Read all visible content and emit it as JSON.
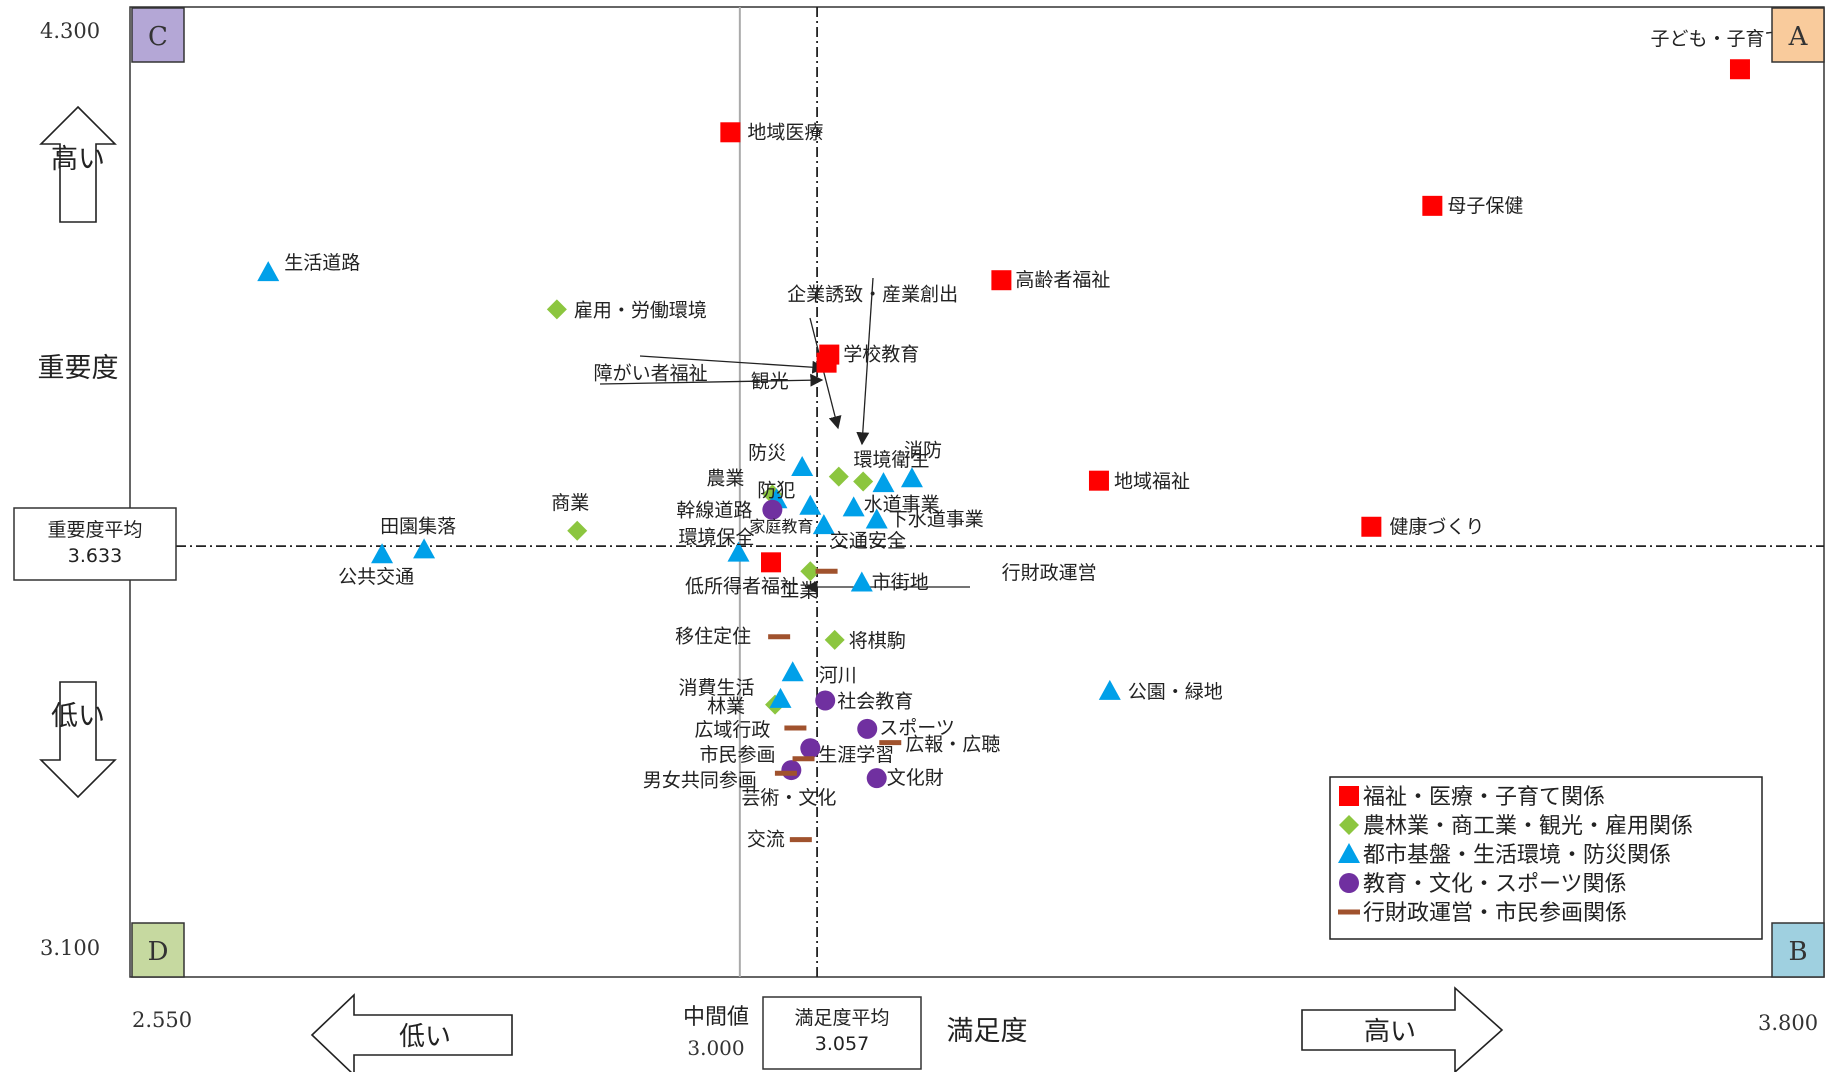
{
  "chart_data": {
    "type": "scatter",
    "xlabel": "満足度",
    "ylabel": "重要度",
    "xlim": [
      2.55,
      3.8
    ],
    "ylim": [
      3.1,
      4.3
    ],
    "x_tick_labels": [
      "2.550",
      "3.800"
    ],
    "y_tick_labels": [
      "4.300",
      "3.100"
    ],
    "grid": false,
    "legend_position": "bottom-right",
    "reference_lines": {
      "importance_avg": {
        "label": "重要度平均",
        "value_text": "3.633",
        "value": 3.633
      },
      "satisfaction_avg": {
        "label": "満足度平均",
        "value_text": "3.057",
        "value": 3.057
      },
      "median": {
        "label": "中間値",
        "value_text": "3.000",
        "value": 3.0
      }
    },
    "quadrants": {
      "top_left": "C",
      "top_right": "A",
      "bottom_right": "B",
      "bottom_left": "D"
    },
    "direction_labels": {
      "y_high": "高い",
      "y_low": "低い",
      "x_low": "低い",
      "x_high": "高い"
    },
    "series": [
      {
        "name": "福祉・医療・子育て関係",
        "marker": "square",
        "color": "#ff0000",
        "points": [
          {
            "label": "子ども・子育て支援",
            "x": 3.738,
            "y": 4.223
          },
          {
            "label": "地域医療",
            "x": 2.993,
            "y": 4.145
          },
          {
            "label": "母子保健",
            "x": 3.511,
            "y": 4.054
          },
          {
            "label": "高齢者福祉",
            "x": 3.193,
            "y": 3.962
          },
          {
            "label": "学校教育",
            "x": 3.066,
            "y": 3.87
          },
          {
            "label": "障がい者福祉",
            "x": 3.064,
            "y": 3.86
          },
          {
            "label": "地域福祉",
            "x": 3.265,
            "y": 3.714
          },
          {
            "label": "健康づくり",
            "x": 3.466,
            "y": 3.657
          },
          {
            "label": "低所得者福祉",
            "x": 3.023,
            "y": 3.613
          }
        ]
      },
      {
        "name": "農林業・商工業・観光・雇用関係",
        "marker": "diamond",
        "color": "#8cc63f",
        "points": [
          {
            "label": "雇用・労働環境",
            "x": 2.865,
            "y": 3.926
          },
          {
            "label": "観光",
            "x": 3.073,
            "y": 3.719
          },
          {
            "label": "企業誘致・産業創出",
            "x": 3.091,
            "y": 3.713
          },
          {
            "label": "農業",
            "x": 3.024,
            "y": 3.697
          },
          {
            "label": "商業",
            "x": 2.88,
            "y": 3.652
          },
          {
            "label": "工業",
            "x": 3.052,
            "y": 3.602
          },
          {
            "label": "将棋駒",
            "x": 3.07,
            "y": 3.517
          },
          {
            "label": "林業",
            "x": 3.026,
            "y": 3.437
          }
        ]
      },
      {
        "name": "都市基盤・生活環境・防災関係",
        "marker": "triangle",
        "color": "#00a0e9",
        "points": [
          {
            "label": "生活道路",
            "x": 2.652,
            "y": 3.972
          },
          {
            "label": "防災",
            "x": 3.046,
            "y": 3.731
          },
          {
            "label": "消防",
            "x": 3.127,
            "y": 3.717
          },
          {
            "label": "環境衛生",
            "x": 3.106,
            "y": 3.711
          },
          {
            "label": "幹線道路",
            "x": 3.027,
            "y": 3.691
          },
          {
            "label": "防犯",
            "x": 3.052,
            "y": 3.683
          },
          {
            "label": "水道事業",
            "x": 3.084,
            "y": 3.681
          },
          {
            "label": "下水道事業",
            "x": 3.101,
            "y": 3.666
          },
          {
            "label": "交通安全",
            "x": 3.062,
            "y": 3.659
          },
          {
            "label": "田園集落",
            "x": 2.767,
            "y": 3.629
          },
          {
            "label": "公共交通",
            "x": 2.736,
            "y": 3.623
          },
          {
            "label": "環境保全",
            "x": 2.999,
            "y": 3.625
          },
          {
            "label": "市街地",
            "x": 3.09,
            "y": 3.588
          },
          {
            "label": "河川",
            "x": 3.039,
            "y": 3.477
          },
          {
            "label": "公園・緑地",
            "x": 3.273,
            "y": 3.454
          },
          {
            "label": "消費生活",
            "x": 3.03,
            "y": 3.444
          }
        ]
      },
      {
        "name": "教育・文化・スポーツ関係",
        "marker": "circle",
        "color": "#7030a0",
        "points": [
          {
            "label": "家庭教育",
            "x": 3.024,
            "y": 3.678
          },
          {
            "label": "社会教育",
            "x": 3.063,
            "y": 3.442
          },
          {
            "label": "スポーツ",
            "x": 3.094,
            "y": 3.407
          },
          {
            "label": "生涯学習",
            "x": 3.052,
            "y": 3.383
          },
          {
            "label": "文化財",
            "x": 3.101,
            "y": 3.346
          },
          {
            "label": "芸術・文化",
            "x": 3.038,
            "y": 3.356
          }
        ]
      },
      {
        "name": "行財政運営・市民参画関係",
        "marker": "dash",
        "color": "#a0522d",
        "points": [
          {
            "label": "行財政運営",
            "x": 3.064,
            "y": 3.602
          },
          {
            "label": "移住定住",
            "x": 3.029,
            "y": 3.521
          },
          {
            "label": "広域行政",
            "x": 3.041,
            "y": 3.408
          },
          {
            "label": "広報・広聴",
            "x": 3.111,
            "y": 3.39
          },
          {
            "label": "市民参画",
            "x": 3.047,
            "y": 3.37
          },
          {
            "label": "男女共同参画",
            "x": 3.034,
            "y": 3.352
          },
          {
            "label": "交流",
            "x": 3.045,
            "y": 3.27
          }
        ]
      }
    ]
  }
}
